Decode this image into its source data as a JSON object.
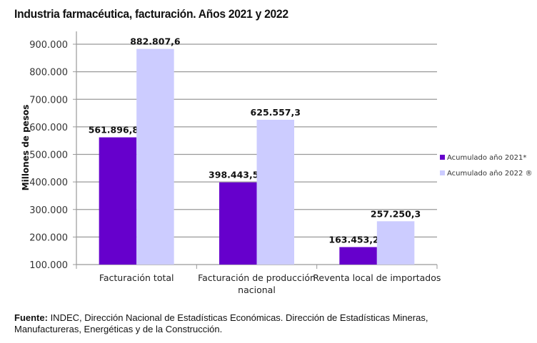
{
  "chart_data": {
    "type": "bar",
    "title": "Industria farmacéutica, facturación. Años 2021 y 2022",
    "ylabel": "Millones de pesos",
    "xlabel": "",
    "ylim": [
      100000,
      900000
    ],
    "yticks": [
      "100.000",
      "200.000",
      "300.000",
      "400.000",
      "500.000",
      "600.000",
      "700.000",
      "800.000",
      "900.000"
    ],
    "grid": true,
    "legend_position": "right",
    "categories": [
      [
        "Facturación total"
      ],
      [
        "Facturación de producción",
        "nacional"
      ],
      [
        "Reventa local de importados"
      ]
    ],
    "series": [
      {
        "name": "Acumulado año 2021*",
        "color": "#6600cc",
        "values": [
          561896.8,
          398443.5,
          163453.2
        ],
        "labels": [
          "561.896,8",
          "398.443,5",
          "163.453,2"
        ]
      },
      {
        "name": "Acumulado año 2022 ®",
        "color": "#ccccff",
        "values": [
          882807.6,
          625557.3,
          257250.3
        ],
        "labels": [
          "882.807,6",
          "625.557,3",
          "257.250,3"
        ]
      }
    ]
  },
  "source": {
    "label": "Fuente:",
    "text": " INDEC, Dirección Nacional de Estadísticas Económicas. Dirección de Estadísticas Mineras, Manufactureras, Energéticas y de la Construcción."
  }
}
